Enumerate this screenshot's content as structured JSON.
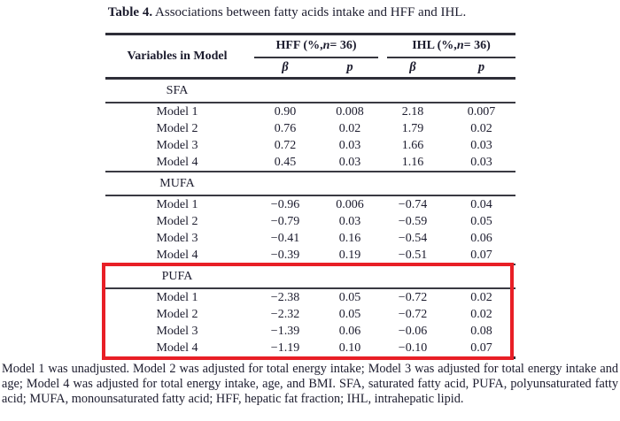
{
  "title": {
    "label": "Table 4.",
    "text": "Associations between fatty acids intake and HFF and IHL."
  },
  "table": {
    "header": {
      "variables_label": "Variables in Model",
      "groups": [
        {
          "prefix": "HFF (%, ",
          "n": "n",
          "suffix": " = 36)"
        },
        {
          "prefix": "IHL (%, ",
          "n": "n",
          "suffix": " = 36)"
        }
      ],
      "subcolumns": [
        "β",
        "p",
        "β",
        "p"
      ]
    },
    "sections": [
      {
        "label": "SFA",
        "highlighted": false,
        "rows": [
          {
            "cells": [
              "Model 1",
              "0.90",
              "0.008",
              "2.18",
              "0.007"
            ]
          },
          {
            "cells": [
              "Model 2",
              "0.76",
              "0.02",
              "1.79",
              "0.02"
            ]
          },
          {
            "cells": [
              "Model 3",
              "0.72",
              "0.03",
              "1.66",
              "0.03"
            ]
          },
          {
            "cells": [
              "Model 4",
              "0.45",
              "0.03",
              "1.16",
              "0.03"
            ]
          }
        ]
      },
      {
        "label": "MUFA",
        "highlighted": false,
        "rows": [
          {
            "cells": [
              "Model 1",
              "−0.96",
              "0.006",
              "−0.74",
              "0.04"
            ]
          },
          {
            "cells": [
              "Model 2",
              "−0.79",
              "0.03",
              "−0.59",
              "0.05"
            ]
          },
          {
            "cells": [
              "Model 3",
              "−0.41",
              "0.16",
              "−0.54",
              "0.06"
            ]
          },
          {
            "cells": [
              "Model 4",
              "−0.39",
              "0.19",
              "−0.51",
              "0.07"
            ]
          }
        ]
      },
      {
        "label": "PUFA",
        "highlighted": true,
        "rows": [
          {
            "cells": [
              "Model 1",
              "−2.38",
              "0.05",
              "−0.72",
              "0.02"
            ]
          },
          {
            "cells": [
              "Model 2",
              "−2.32",
              "0.05",
              "−0.72",
              "0.02"
            ]
          },
          {
            "cells": [
              "Model 3",
              "−1.39",
              "0.06",
              "−0.06",
              "0.08"
            ]
          },
          {
            "cells": [
              "Model 4",
              "−1.19",
              "0.10",
              "−0.10",
              "0.07"
            ]
          }
        ]
      }
    ]
  },
  "highlight": {
    "color": "#e81f26",
    "target_section": "PUFA"
  },
  "footnote": "Model 1 was unadjusted.  Model 2 was adjusted for total energy intake; Model 3 was adjusted for total energy intake and age; Model 4 was adjusted for total energy intake, age, and BMI. SFA, saturated fatty acid, PUFA, polyunsaturated fatty acid; MUFA, monounsaturated fatty acid; HFF, hepatic fat fraction; IHL, intrahepatic lipid."
}
